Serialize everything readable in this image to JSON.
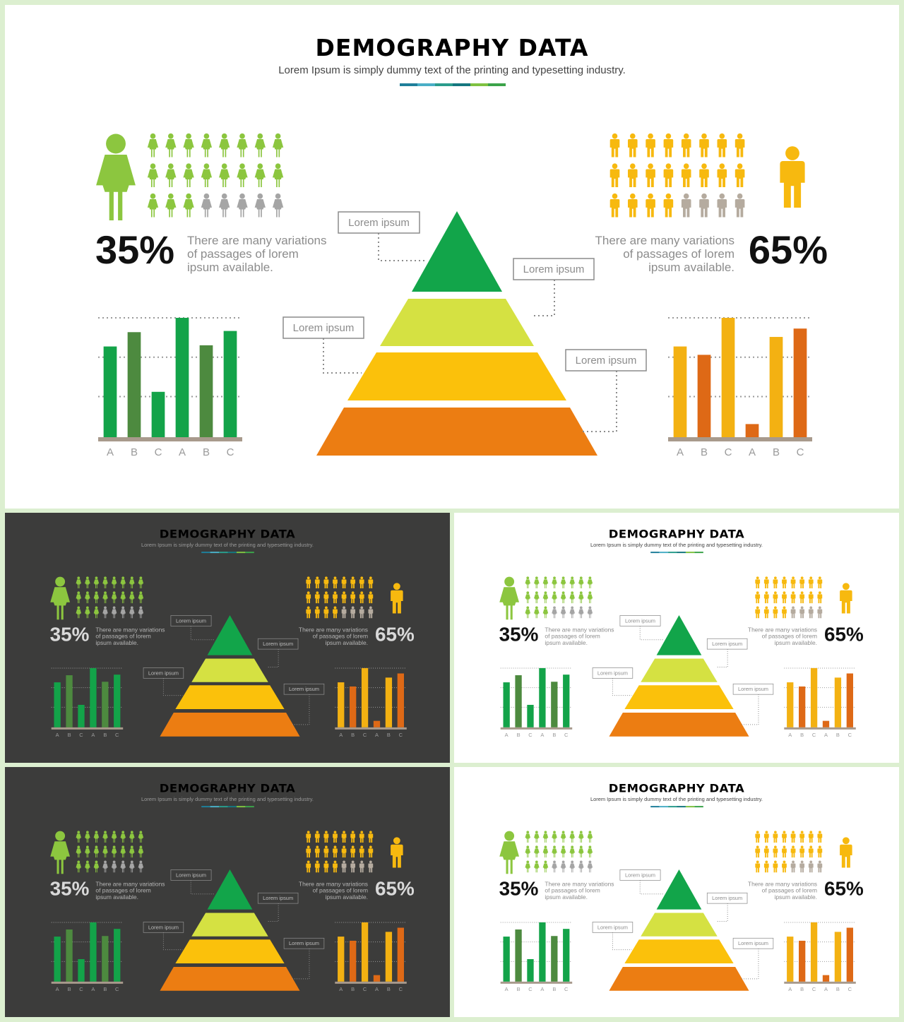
{
  "slide": {
    "title": "DEMOGRAPHY DATA",
    "subtitle": "Lorem Ipsum is simply dummy text of the printing and typesetting industry.",
    "female": {
      "percent": "35%",
      "desc": [
        "There are many variations",
        "of passages of lorem",
        "ipsum available."
      ],
      "icon": "female-person-icon",
      "grid_total": 24,
      "grid_highlighted": 19,
      "highlight_color": "#8cc63f",
      "muted_color": "#a5a5a5"
    },
    "male": {
      "percent": "65%",
      "desc": [
        "There are many variations",
        "of passages of lorem",
        "ipsum available."
      ],
      "icon": "male-person-icon",
      "grid_total": 24,
      "grid_highlighted": 20,
      "highlight_color": "#f7b90f",
      "muted_color": "#b5ab9f"
    },
    "pyramid": {
      "labels": [
        "Lorem ipsum",
        "Lorem ipsum",
        "Lorem ipsum",
        "Lorem ipsum"
      ],
      "tier_colors": [
        "#12a54a",
        "#d5e142",
        "#fbc10b",
        "#ec7d12"
      ]
    },
    "accent_colors": [
      "#1f7f9a",
      "#4aaec6",
      "#2a9c8c",
      "#15777f",
      "#7fc241",
      "#3ba34a"
    ]
  },
  "chart_data": [
    {
      "type": "bar",
      "categories": [
        "A",
        "B",
        "C",
        "A",
        "B",
        "C"
      ],
      "values": [
        76,
        88,
        38,
        100,
        77,
        89
      ],
      "colors": [
        "#13a349",
        "#4d8a3f",
        "#13a349",
        "#13a349",
        "#4d8a3f",
        "#13a349"
      ],
      "ylim": [
        0,
        100
      ],
      "grid": true
    },
    {
      "type": "bar",
      "categories": [
        "A",
        "B",
        "C",
        "A",
        "B",
        "C"
      ],
      "values": [
        76,
        69,
        100,
        11,
        84,
        91
      ],
      "colors": [
        "#f3b112",
        "#de6916",
        "#f3b112",
        "#de6916",
        "#f3b112",
        "#de6916"
      ],
      "ylim": [
        0,
        100
      ],
      "grid": true
    }
  ],
  "thumbnails": [
    {
      "theme": "dark"
    },
    {
      "theme": "light"
    },
    {
      "theme": "dark"
    },
    {
      "theme": "light"
    }
  ]
}
